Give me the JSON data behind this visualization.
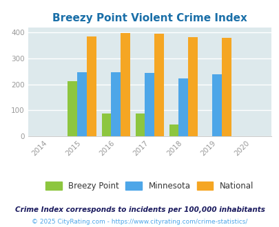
{
  "title": "Breezy Point Violent Crime Index",
  "years": [
    2015,
    2016,
    2017,
    2018,
    2019
  ],
  "breezy_point": [
    212,
    87,
    87,
    45,
    0
  ],
  "minnesota": [
    246,
    246,
    243,
    222,
    239
  ],
  "national": [
    384,
    398,
    394,
    381,
    379
  ],
  "bar_colors": {
    "breezy_point": "#8dc63f",
    "minnesota": "#4da6e8",
    "national": "#f5a623"
  },
  "xlim": [
    2013.4,
    2020.6
  ],
  "ylim": [
    0,
    420
  ],
  "yticks": [
    0,
    100,
    200,
    300,
    400
  ],
  "xticks": [
    2014,
    2015,
    2016,
    2017,
    2018,
    2019,
    2020
  ],
  "bg_color": "#dde9ec",
  "title_color": "#1a6fa8",
  "legend_labels": [
    "Breezy Point",
    "Minnesota",
    "National"
  ],
  "footnote1": "Crime Index corresponds to incidents per 100,000 inhabitants",
  "footnote2": "© 2025 CityRating.com - https://www.cityrating.com/crime-statistics/",
  "bar_width": 0.28,
  "grid_color": "#ffffff",
  "axis_label_color": "#999999",
  "footnote1_color": "#1a1a5e",
  "footnote2_color": "#4da6e8",
  "legend_text_color": "#333333"
}
